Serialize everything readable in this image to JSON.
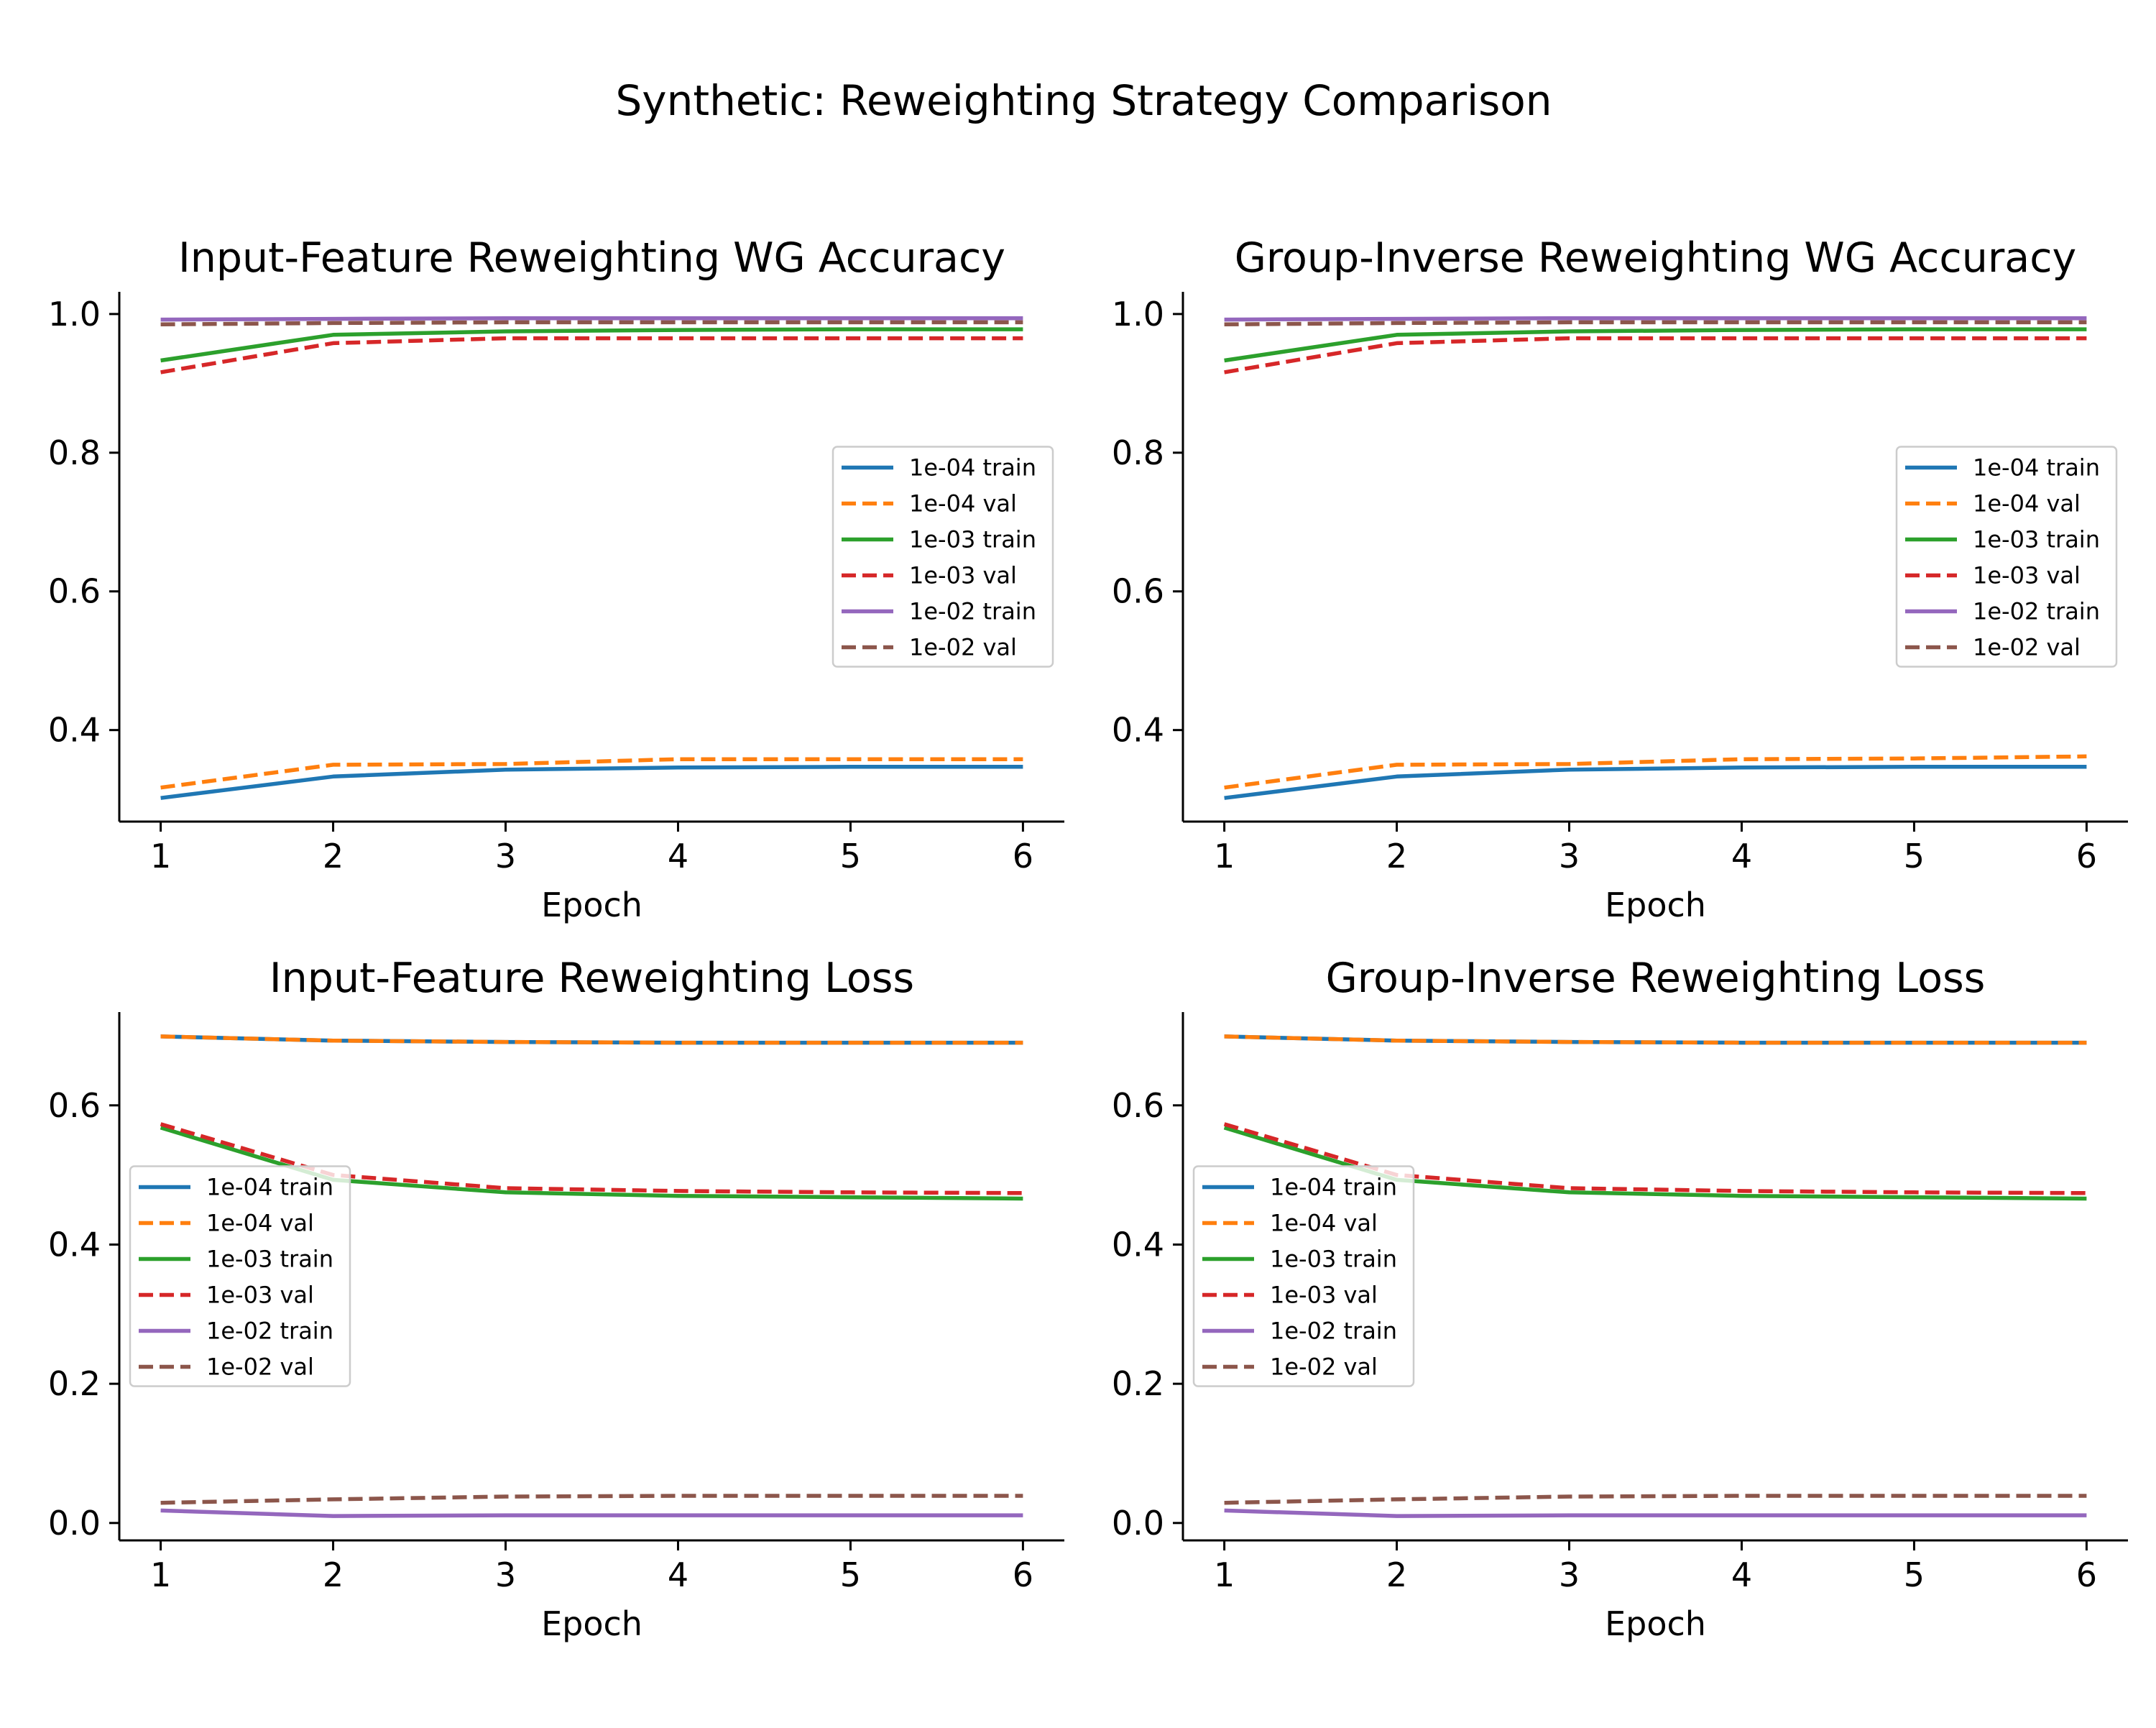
{
  "figure": {
    "suptitle": "Synthetic: Reweighting Strategy Comparison"
  },
  "colors": {
    "1e-04 train": "#1f77b4",
    "1e-04 val": "#ff7f0e",
    "1e-03 train": "#2ca02c",
    "1e-03 val": "#d62728",
    "1e-02 train": "#9467bd",
    "1e-02 val": "#8c564b"
  },
  "chart_data": [
    {
      "type": "line",
      "title": "Input-Feature Reweighting WG Accuracy",
      "xlabel": "Epoch",
      "ylabel": "",
      "xlim": [
        0.76,
        6.24
      ],
      "ylim": [
        0.268,
        1.032
      ],
      "xticks": [
        1,
        2,
        3,
        4,
        5,
        6
      ],
      "yticks": [
        0.4,
        0.6,
        0.8,
        1.0
      ],
      "ytick_labels": [
        "0.4",
        "0.6",
        "0.8",
        "1.0"
      ],
      "legend_position": "center right",
      "x": [
        1,
        2,
        3,
        4,
        5,
        6
      ],
      "series": [
        {
          "name": "1e-04 train",
          "style": "solid",
          "values": [
            0.302,
            0.333,
            0.343,
            0.346,
            0.347,
            0.347
          ]
        },
        {
          "name": "1e-04 val",
          "style": "dashed",
          "values": [
            0.317,
            0.35,
            0.351,
            0.358,
            0.358,
            0.358
          ]
        },
        {
          "name": "1e-03 train",
          "style": "solid",
          "values": [
            0.933,
            0.97,
            0.975,
            0.977,
            0.978,
            0.978
          ]
        },
        {
          "name": "1e-03 val",
          "style": "dashed",
          "values": [
            0.916,
            0.958,
            0.965,
            0.965,
            0.965,
            0.965
          ]
        },
        {
          "name": "1e-02 train",
          "style": "solid",
          "values": [
            0.992,
            0.993,
            0.994,
            0.994,
            0.994,
            0.994
          ]
        },
        {
          "name": "1e-02 val",
          "style": "dashed",
          "values": [
            0.985,
            0.987,
            0.988,
            0.988,
            0.988,
            0.988
          ]
        }
      ]
    },
    {
      "type": "line",
      "title": "Group-Inverse Reweighting WG Accuracy",
      "xlabel": "Epoch",
      "ylabel": "",
      "xlim": [
        0.76,
        6.24
      ],
      "ylim": [
        0.268,
        1.032
      ],
      "xticks": [
        1,
        2,
        3,
        4,
        5,
        6
      ],
      "yticks": [
        0.4,
        0.6,
        0.8,
        1.0
      ],
      "ytick_labels": [
        "0.4",
        "0.6",
        "0.8",
        "1.0"
      ],
      "legend_position": "center right",
      "x": [
        1,
        2,
        3,
        4,
        5,
        6
      ],
      "series": [
        {
          "name": "1e-04 train",
          "style": "solid",
          "values": [
            0.302,
            0.333,
            0.343,
            0.346,
            0.347,
            0.347
          ]
        },
        {
          "name": "1e-04 val",
          "style": "dashed",
          "values": [
            0.317,
            0.35,
            0.351,
            0.358,
            0.359,
            0.362
          ]
        },
        {
          "name": "1e-03 train",
          "style": "solid",
          "values": [
            0.933,
            0.97,
            0.975,
            0.977,
            0.978,
            0.978
          ]
        },
        {
          "name": "1e-03 val",
          "style": "dashed",
          "values": [
            0.916,
            0.958,
            0.965,
            0.965,
            0.965,
            0.965
          ]
        },
        {
          "name": "1e-02 train",
          "style": "solid",
          "values": [
            0.992,
            0.993,
            0.994,
            0.994,
            0.994,
            0.994
          ]
        },
        {
          "name": "1e-02 val",
          "style": "dashed",
          "values": [
            0.985,
            0.987,
            0.988,
            0.988,
            0.988,
            0.988
          ]
        }
      ]
    },
    {
      "type": "line",
      "title": "Input-Feature Reweighting Loss",
      "xlabel": "Epoch",
      "ylabel": "",
      "xlim": [
        0.76,
        6.24
      ],
      "ylim": [
        -0.025,
        0.734
      ],
      "xticks": [
        1,
        2,
        3,
        4,
        5,
        6
      ],
      "yticks": [
        0.0,
        0.2,
        0.4,
        0.6
      ],
      "ytick_labels": [
        "0.0",
        "0.2",
        "0.4",
        "0.6"
      ],
      "legend_position": "center left",
      "x": [
        1,
        2,
        3,
        4,
        5,
        6
      ],
      "series": [
        {
          "name": "1e-04 train",
          "style": "solid",
          "values": [
            0.699,
            0.693,
            0.691,
            0.69,
            0.69,
            0.69
          ]
        },
        {
          "name": "1e-04 val",
          "style": "dashed",
          "values": [
            0.699,
            0.693,
            0.691,
            0.69,
            0.69,
            0.69
          ]
        },
        {
          "name": "1e-03 train",
          "style": "solid",
          "values": [
            0.568,
            0.493,
            0.475,
            0.47,
            0.468,
            0.466
          ]
        },
        {
          "name": "1e-03 val",
          "style": "dashed",
          "values": [
            0.573,
            0.5,
            0.481,
            0.477,
            0.475,
            0.474
          ]
        },
        {
          "name": "1e-02 train",
          "style": "solid",
          "values": [
            0.018,
            0.01,
            0.011,
            0.011,
            0.011,
            0.011
          ]
        },
        {
          "name": "1e-02 val",
          "style": "dashed",
          "values": [
            0.029,
            0.034,
            0.038,
            0.039,
            0.039,
            0.039
          ]
        }
      ]
    },
    {
      "type": "line",
      "title": "Group-Inverse Reweighting Loss",
      "xlabel": "Epoch",
      "ylabel": "",
      "xlim": [
        0.76,
        6.24
      ],
      "ylim": [
        -0.025,
        0.734
      ],
      "xticks": [
        1,
        2,
        3,
        4,
        5,
        6
      ],
      "yticks": [
        0.0,
        0.2,
        0.4,
        0.6
      ],
      "ytick_labels": [
        "0.0",
        "0.2",
        "0.4",
        "0.6"
      ],
      "legend_position": "center left",
      "x": [
        1,
        2,
        3,
        4,
        5,
        6
      ],
      "series": [
        {
          "name": "1e-04 train",
          "style": "solid",
          "values": [
            0.699,
            0.693,
            0.691,
            0.69,
            0.69,
            0.69
          ]
        },
        {
          "name": "1e-04 val",
          "style": "dashed",
          "values": [
            0.699,
            0.693,
            0.691,
            0.69,
            0.69,
            0.69
          ]
        },
        {
          "name": "1e-03 train",
          "style": "solid",
          "values": [
            0.568,
            0.493,
            0.475,
            0.47,
            0.468,
            0.466
          ]
        },
        {
          "name": "1e-03 val",
          "style": "dashed",
          "values": [
            0.573,
            0.5,
            0.481,
            0.477,
            0.475,
            0.474
          ]
        },
        {
          "name": "1e-02 train",
          "style": "solid",
          "values": [
            0.018,
            0.01,
            0.011,
            0.011,
            0.011,
            0.011
          ]
        },
        {
          "name": "1e-02 val",
          "style": "dashed",
          "values": [
            0.029,
            0.034,
            0.038,
            0.039,
            0.039,
            0.039
          ]
        }
      ]
    }
  ]
}
